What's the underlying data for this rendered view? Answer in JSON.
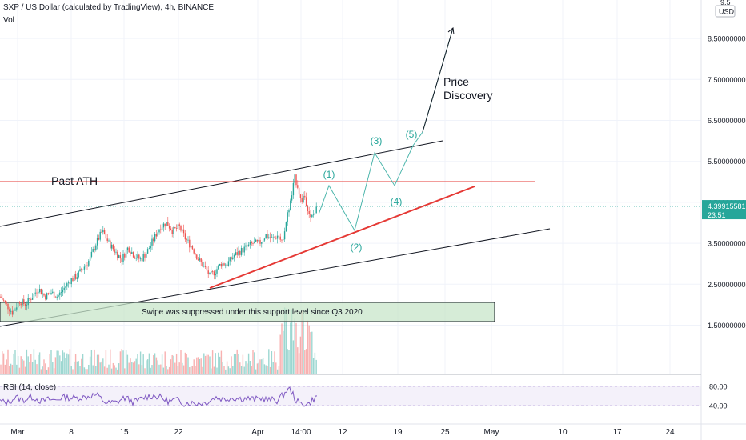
{
  "header": {
    "title": "SXP / US Dollar (calculated by TradingView), 4h, BINANCE",
    "vol_label": "Vol"
  },
  "currency_badge": {
    "line1": "9.5",
    "line2": "USD"
  },
  "rsi": {
    "label": "RSI (14, close)",
    "ticks": [
      "80.00",
      "40.00"
    ]
  },
  "colors": {
    "up": "#26a69a",
    "down": "#ef5350",
    "annotation_line": "#e53935",
    "support_box_fill": "#c8e6c9",
    "wave_label": "#26a69a",
    "rsi_line": "#7e57c2",
    "rsi_band": "#ede7f6"
  },
  "chart_data": {
    "type": "candlestick",
    "title": "SXP / US Dollar (calculated by TradingView), 4h, BINANCE",
    "y_axis": {
      "ticks": [
        "8.50000000",
        "7.50000000",
        "6.50000000",
        "5.50000000",
        "4.50000000",
        "3.50000000",
        "2.50000000",
        "1.50000000"
      ],
      "ylim": [
        0.7,
        9.5
      ]
    },
    "x_axis": {
      "ticks": [
        "Mar",
        "8",
        "15",
        "22",
        "Apr",
        "14:00",
        "12",
        "19",
        "25",
        "May",
        "10",
        "17",
        "24"
      ]
    },
    "current_price": {
      "value": "4.39915581",
      "countdown": "23:51"
    },
    "past_ath_level": 5.0,
    "price_path": [
      [
        0,
        2.2
      ],
      [
        8,
        2.0
      ],
      [
        16,
        1.8
      ],
      [
        24,
        2.1
      ],
      [
        32,
        2.0
      ],
      [
        40,
        2.2
      ],
      [
        48,
        2.4
      ],
      [
        56,
        2.2
      ],
      [
        64,
        2.3
      ],
      [
        72,
        2.2
      ],
      [
        80,
        2.4
      ],
      [
        88,
        2.6
      ],
      [
        96,
        2.7
      ],
      [
        104,
        2.9
      ],
      [
        112,
        3.1
      ],
      [
        120,
        3.5
      ],
      [
        128,
        3.8
      ],
      [
        136,
        3.5
      ],
      [
        144,
        3.3
      ],
      [
        152,
        3.1
      ],
      [
        160,
        3.4
      ],
      [
        168,
        3.2
      ],
      [
        176,
        3.1
      ],
      [
        184,
        3.3
      ],
      [
        192,
        3.6
      ],
      [
        200,
        3.9
      ],
      [
        208,
        4.0
      ],
      [
        216,
        3.8
      ],
      [
        224,
        3.9
      ],
      [
        232,
        3.6
      ],
      [
        240,
        3.4
      ],
      [
        248,
        3.1
      ],
      [
        256,
        2.9
      ],
      [
        262,
        2.7
      ],
      [
        268,
        2.8
      ],
      [
        276,
        3.0
      ],
      [
        284,
        3.0
      ],
      [
        292,
        3.2
      ],
      [
        300,
        3.3
      ],
      [
        308,
        3.4
      ],
      [
        316,
        3.5
      ],
      [
        324,
        3.5
      ],
      [
        332,
        3.7
      ],
      [
        340,
        3.6
      ],
      [
        348,
        3.7
      ],
      [
        352,
        3.5
      ],
      [
        358,
        4.1
      ],
      [
        364,
        4.6
      ],
      [
        368,
        5.1
      ],
      [
        372,
        4.9
      ],
      [
        376,
        4.5
      ],
      [
        380,
        4.7
      ],
      [
        384,
        4.4
      ],
      [
        388,
        4.1
      ],
      [
        392,
        4.2
      ],
      [
        397,
        4.39
      ]
    ],
    "annotations": {
      "past_ath_label": "Past ATH",
      "support_box_label": "Swipe was suppressed under this support level since Q3 2020",
      "price_discovery_line1": "Price",
      "price_discovery_line2": "Discovery",
      "wave_labels": [
        "(1)",
        "(2)",
        "(3)",
        "(4)",
        "(5)"
      ]
    }
  }
}
